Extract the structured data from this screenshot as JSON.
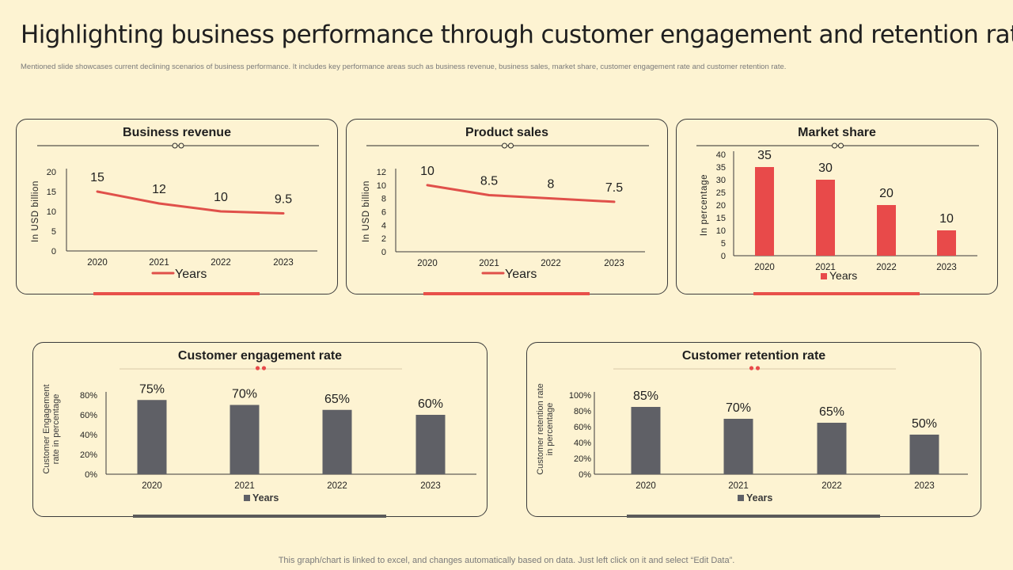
{
  "page": {
    "title": "Highlighting business performance through customer engagement and retention rate",
    "subtitle": "Mentioned slide showcases current declining scenarios of business performance. It includes key performance areas such as business revenue, business sales, market share, customer engagement rate and customer retention rate.",
    "footer": "This graph/chart is linked to excel,  and changes automatically based on data. Just left click on it and select “Edit Data”."
  },
  "colors": {
    "background": "#fdf3d2",
    "red": "#e84a4a",
    "gray": "#5f6066",
    "red_line": "#e0504a"
  },
  "chart_data": [
    {
      "id": "revenue",
      "type": "line",
      "title": "Business revenue",
      "categories": [
        "2020",
        "2021",
        "2022",
        "2023"
      ],
      "values": [
        15,
        12,
        10,
        9.5
      ],
      "labels": [
        "15",
        "12",
        "10",
        "9.5"
      ],
      "ylabel": "In USD billion",
      "ylim": [
        0,
        20
      ],
      "yticks": [
        "0",
        "5",
        "10",
        "15",
        "20"
      ],
      "legend": "Years"
    },
    {
      "id": "sales",
      "type": "line",
      "title": "Product sales",
      "categories": [
        "2020",
        "2021",
        "2022",
        "2023"
      ],
      "values": [
        10,
        8.5,
        8,
        7.5
      ],
      "labels": [
        "10",
        "8.5",
        "8",
        "7.5"
      ],
      "ylabel": "In USD billion",
      "ylim": [
        0,
        12
      ],
      "yticks": [
        "0",
        "2",
        "4",
        "6",
        "8",
        "10",
        "12"
      ],
      "legend": "Years"
    },
    {
      "id": "market",
      "type": "bar",
      "title": "Market share",
      "categories": [
        "2020",
        "2021",
        "2022",
        "2023"
      ],
      "values": [
        35,
        30,
        20,
        10
      ],
      "labels": [
        "35",
        "30",
        "20",
        "10"
      ],
      "ylabel": "In percentage",
      "ylim": [
        0,
        40
      ],
      "yticks": [
        "0",
        "5",
        "10",
        "15",
        "20",
        "25",
        "30",
        "35",
        "40"
      ],
      "legend": "Years"
    },
    {
      "id": "engagement",
      "type": "bar",
      "title": "Customer engagement rate",
      "categories": [
        "2020",
        "2021",
        "2022",
        "2023"
      ],
      "values": [
        75,
        70,
        65,
        60
      ],
      "labels": [
        "75%",
        "70%",
        "65%",
        "60%"
      ],
      "ylabel": [
        "Customer Engagement",
        "rate in percentage"
      ],
      "ylim": [
        0,
        80
      ],
      "yticks": [
        "0%",
        "20%",
        "40%",
        "60%",
        "80%"
      ],
      "legend": "Years"
    },
    {
      "id": "retention",
      "type": "bar",
      "title": "Customer retention rate",
      "categories": [
        "2020",
        "2021",
        "2022",
        "2023"
      ],
      "values": [
        85,
        70,
        65,
        50
      ],
      "labels": [
        "85%",
        "70%",
        "65%",
        "50%"
      ],
      "ylabel": [
        "Customer retention rate",
        "in percentage"
      ],
      "ylim": [
        0,
        100
      ],
      "yticks": [
        "0%",
        "20%",
        "40%",
        "60%",
        "80%",
        "100%"
      ],
      "legend": "Years"
    }
  ]
}
